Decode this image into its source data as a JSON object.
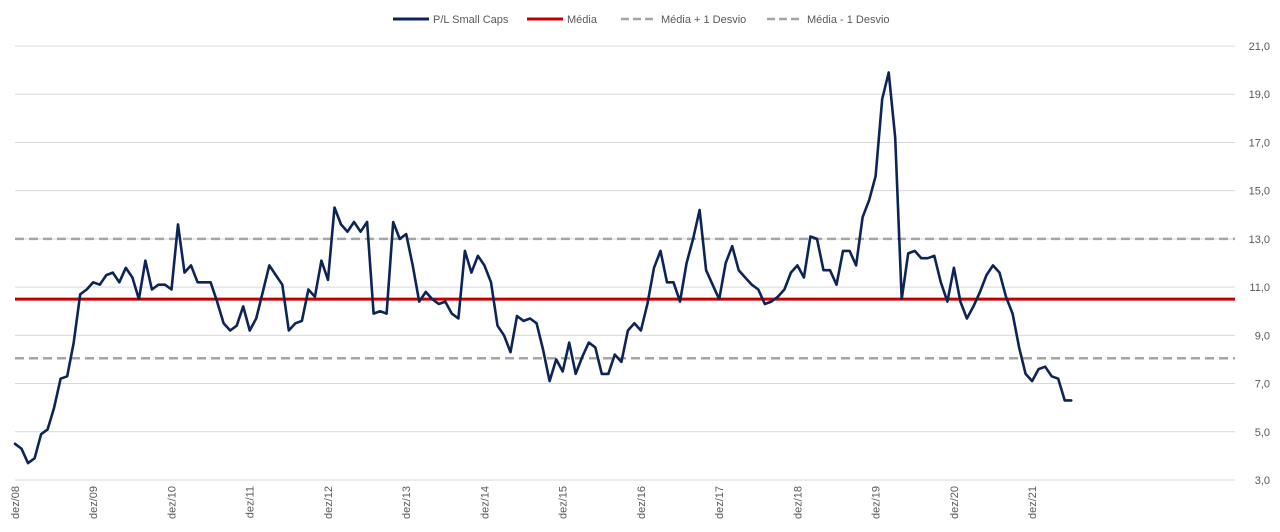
{
  "chart_data": {
    "type": "line",
    "title": "",
    "xlabel": "",
    "ylabel": "",
    "ylim": [
      3.0,
      21.0
    ],
    "y_ticks": [
      "21,0",
      "19,0",
      "17,0",
      "15,0",
      "13,0",
      "11,0",
      "9,0",
      "7,0",
      "5,0",
      "3,0"
    ],
    "x_ticks": [
      "dez/08",
      "dez/09",
      "dez/10",
      "dez/11",
      "dez/12",
      "dez/13",
      "dez/14",
      "dez/15",
      "dez/16",
      "dez/17",
      "dez/18",
      "dez/19",
      "dez/20",
      "dez/21"
    ],
    "grid": "horizontal",
    "legend_position": "top",
    "legend": [
      {
        "key": "pl",
        "label": "P/L Small Caps",
        "color": "#0d2457",
        "style": "solid"
      },
      {
        "key": "mean",
        "label": "Média",
        "color": "#c00000",
        "style": "solid"
      },
      {
        "key": "plus",
        "label": "Média + 1 Desvio",
        "color": "#a6a6a6",
        "style": "dashed"
      },
      {
        "key": "minus",
        "label": "Média - 1 Desvio",
        "color": "#a6a6a6",
        "style": "dashed"
      }
    ],
    "reference_lines": [
      {
        "key": "mean",
        "name": "Média",
        "value": 10.5,
        "color": "#c00000",
        "style": "solid"
      },
      {
        "key": "plus",
        "name": "Média + 1 Desvio",
        "value": 13.0,
        "color": "#a6a6a6",
        "style": "dashed"
      },
      {
        "key": "minus",
        "name": "Média - 1 Desvio",
        "value": 8.05,
        "color": "#a6a6a6",
        "style": "dashed"
      }
    ],
    "series": [
      {
        "name": "P/L Small Caps",
        "color": "#0d2457",
        "x_start": "dez/08",
        "frequency": "monthly",
        "values": [
          4.5,
          4.3,
          3.7,
          3.9,
          4.9,
          5.1,
          6.0,
          7.2,
          7.3,
          8.7,
          10.7,
          10.9,
          11.2,
          11.1,
          11.5,
          11.6,
          11.2,
          11.8,
          11.4,
          10.5,
          12.1,
          10.9,
          11.1,
          11.1,
          10.9,
          13.6,
          11.6,
          11.9,
          11.2,
          11.2,
          11.2,
          10.4,
          9.5,
          9.2,
          9.4,
          10.2,
          9.2,
          9.7,
          10.8,
          11.9,
          11.5,
          11.1,
          9.2,
          9.5,
          9.6,
          10.9,
          10.6,
          12.1,
          11.3,
          14.3,
          13.6,
          13.3,
          13.7,
          13.3,
          13.7,
          9.9,
          10.0,
          9.9,
          13.7,
          13.0,
          13.2,
          11.9,
          10.4,
          10.8,
          10.5,
          10.3,
          10.4,
          9.9,
          9.7,
          12.5,
          11.6,
          12.3,
          11.9,
          11.2,
          9.4,
          9.0,
          8.3,
          9.8,
          9.6,
          9.7,
          9.5,
          8.4,
          7.1,
          8.0,
          7.5,
          8.7,
          7.4,
          8.1,
          8.7,
          8.5,
          7.4,
          7.4,
          8.2,
          7.9,
          9.2,
          9.5,
          9.2,
          10.3,
          11.8,
          12.5,
          11.2,
          11.2,
          10.4,
          12.0,
          13.0,
          14.2,
          11.7,
          11.1,
          10.5,
          12.0,
          12.7,
          11.7,
          11.4,
          11.1,
          10.9,
          10.3,
          10.4,
          10.6,
          10.9,
          11.6,
          11.9,
          11.4,
          13.1,
          13.0,
          11.7,
          11.7,
          11.1,
          12.5,
          12.5,
          11.9,
          13.9,
          14.6,
          15.6,
          18.8,
          19.9,
          17.2,
          10.5,
          12.4,
          12.5,
          12.2,
          12.2,
          12.3,
          11.2,
          10.4,
          11.8,
          10.4,
          9.7,
          10.2,
          10.8,
          11.5,
          11.9,
          11.6,
          10.6,
          9.9,
          8.5,
          7.4,
          7.1,
          7.6,
          7.7,
          7.3,
          7.2,
          6.3,
          6.3
        ]
      }
    ]
  }
}
